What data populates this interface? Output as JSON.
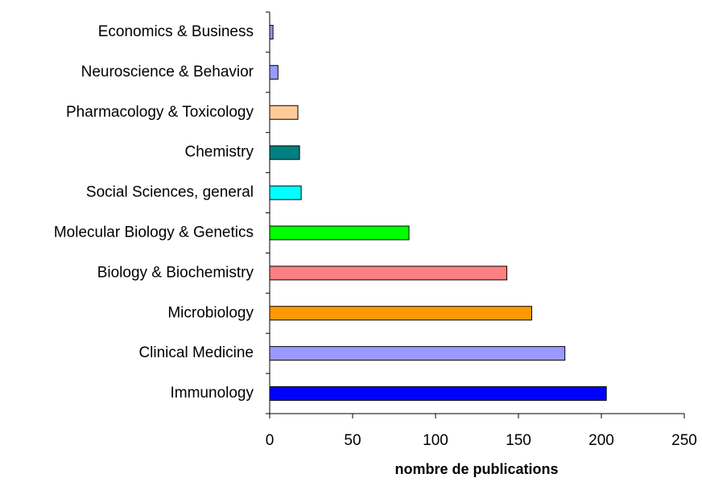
{
  "chart_data": {
    "type": "barh",
    "xlabel": "nombre de publications",
    "categories": [
      "Economics & Business",
      "Neuroscience & Behavior",
      "Pharmacology & Toxicology",
      "Chemistry",
      "Social Sciences, general",
      "Molecular Biology & Genetics",
      "Biology & Biochemistry",
      "Microbiology",
      "Clinical Medicine",
      "Immunology"
    ],
    "values": [
      2,
      5,
      17,
      18,
      19,
      84,
      143,
      158,
      178,
      203
    ],
    "colors": [
      "#9999ff",
      "#9999ff",
      "#ffcc99",
      "#008080",
      "#00ffff",
      "#00ff00",
      "#ff8080",
      "#ff9900",
      "#9999ff",
      "#0000ff"
    ],
    "xlim": [
      0,
      250
    ],
    "xticks": [
      0,
      50,
      100,
      150,
      200,
      250
    ],
    "grid": false
  }
}
